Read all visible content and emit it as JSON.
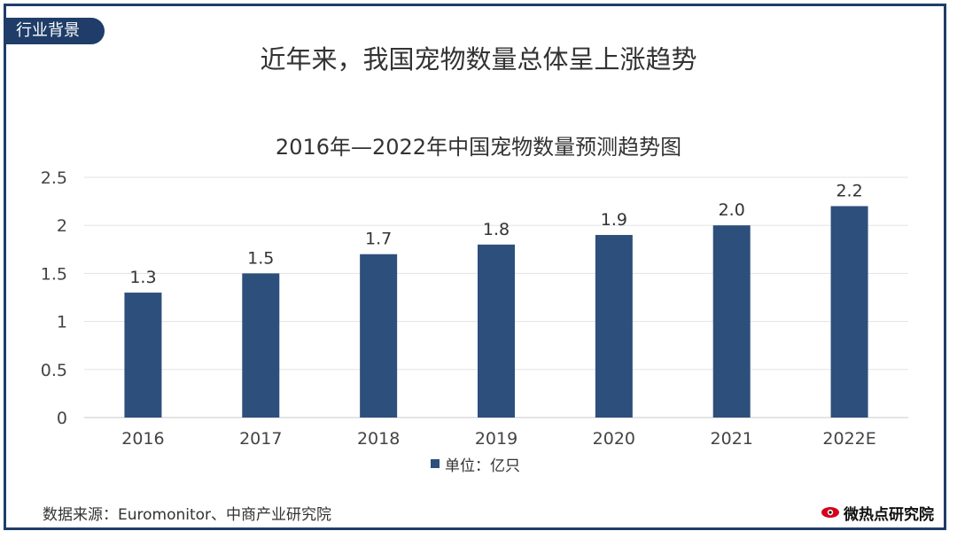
{
  "header": {
    "tag": "行业背景",
    "headline": "近年来，我国宠物数量总体呈上涨趋势"
  },
  "colors": {
    "frame": "#1f3d68",
    "bar": "#2d4f7c",
    "grid": "#e3e3e3"
  },
  "chart_data": {
    "type": "bar",
    "title": "2016年—2022年中国宠物数量预测趋势图",
    "categories": [
      "2016",
      "2017",
      "2018",
      "2019",
      "2020",
      "2021",
      "2022E"
    ],
    "series": [
      {
        "name": "单位：亿只",
        "values": [
          1.3,
          1.5,
          1.7,
          1.8,
          1.9,
          2.0,
          2.2
        ],
        "labels": [
          "1.3",
          "1.5",
          "1.7",
          "1.8",
          "1.9",
          "2.0",
          "2.2"
        ]
      }
    ],
    "yticks": [
      "0",
      "0.5",
      "1",
      "1.5",
      "2",
      "2.5"
    ],
    "ylim": [
      0,
      2.5
    ],
    "grid": true,
    "legend": "bottom"
  },
  "footer": {
    "source": "数据来源：Euromonitor、中商产业研究院",
    "brand": "微热点研究院",
    "brand_icon": "eye-icon"
  }
}
